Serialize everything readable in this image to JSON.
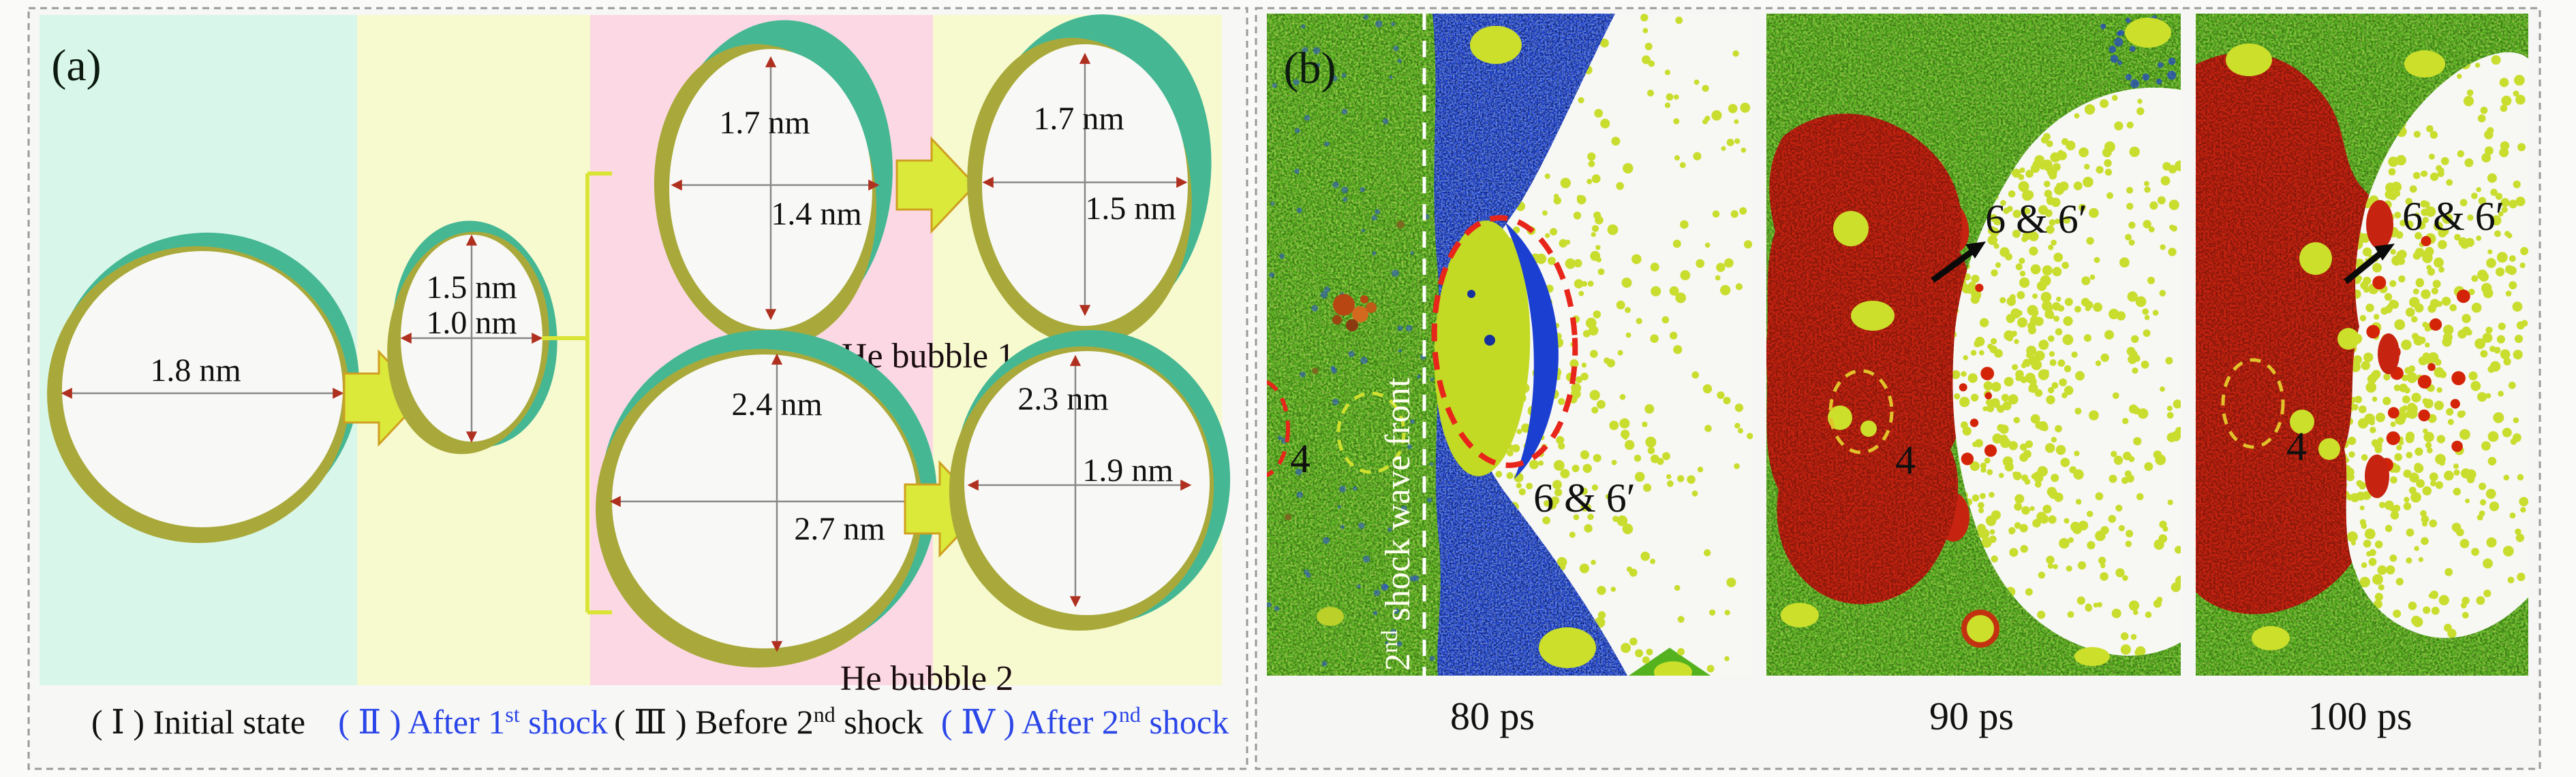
{
  "figure": {
    "panel_a": {
      "label": "(a)",
      "measurements": {
        "initial": {
          "d1": "1.8 nm"
        },
        "after1": {
          "d1": "1.5 nm",
          "d2": "1.0 nm"
        },
        "he1_before": {
          "d1": "1.7 nm",
          "d2": "1.4 nm"
        },
        "he2_before": {
          "d1": "2.4 nm",
          "d2": "2.7 nm"
        },
        "he1_after": {
          "d1": "1.7 nm",
          "d2": "1.5 nm"
        },
        "he2_after": {
          "d1": "2.3 nm",
          "d2": "1.9 nm"
        }
      },
      "bubble_names": {
        "he1": "He bubble 1",
        "he2": "He bubble 2"
      },
      "captions": {
        "s1": {
          "text": "( Ⅰ ) Initial state"
        },
        "s2": {
          "pre": "( Ⅱ ) After 1",
          "sup": "st",
          "post": " shock"
        },
        "s3": {
          "pre": "( Ⅲ ) Before 2",
          "sup": "nd",
          "post": " shock"
        },
        "s4": {
          "pre": "( Ⅳ ) After 2",
          "sup": "nd",
          "post": " shock"
        }
      }
    },
    "panel_b": {
      "label": "(b)",
      "shock_front": {
        "pre": "2",
        "sup": "nd",
        "post": " shock wave front"
      },
      "frames": [
        {
          "time": "80 ps",
          "bubble_label": "6 & 6′",
          "void_label": "4"
        },
        {
          "time": "90 ps",
          "bubble_label": "6 & 6′",
          "void_label": "4"
        },
        {
          "time": "100 ps",
          "bubble_label": "6 & 6′",
          "void_label": "4"
        }
      ]
    },
    "colors": {
      "caption_blue": "#2b46e8",
      "band_cyan": "#d9f6ea",
      "band_yellow": "#f7f9cf",
      "band_pink": "#fbd8e3",
      "ring_teal": "#45b793",
      "ring_olive": "#a9a93b",
      "arrow_yellow": "#dbe93b",
      "cu_green": "#54b21e",
      "shock_blue": "#1b3fd0",
      "hot_red": "#c62310",
      "he_dot_yellow": "#c9dd2f",
      "red_dashed": "#e8251a",
      "yellow_dashed": "#e2c22a",
      "shock_front_line": "#ffffff"
    }
  }
}
